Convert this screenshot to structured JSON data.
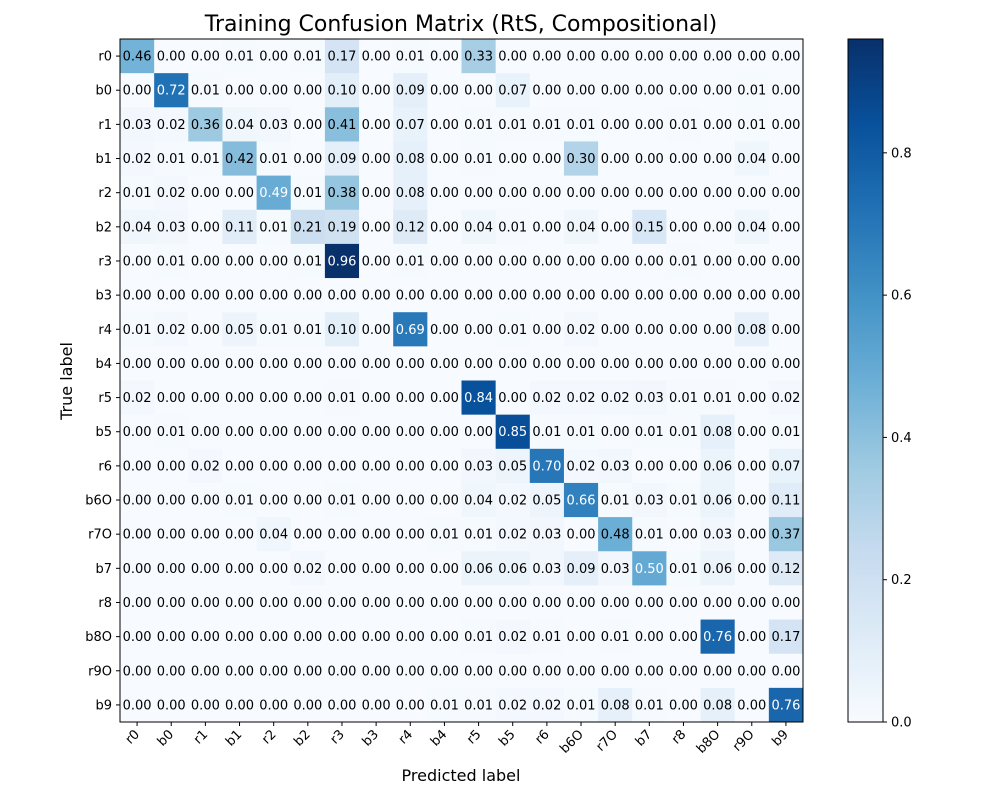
{
  "chart_data": {
    "type": "heatmap",
    "title": "Training Confusion Matrix (RtS, Compositional)",
    "xlabel": "Predicted label",
    "ylabel": "True label",
    "colormap": "Blues",
    "vmin": 0.0,
    "vmax": 0.96,
    "colorbar_ticks": [
      "0.0",
      "0.2",
      "0.4",
      "0.6",
      "0.8"
    ],
    "colorbar_tick_values": [
      0.0,
      0.2,
      0.4,
      0.6,
      0.8
    ],
    "text_color_threshold": 0.48,
    "x_categories": [
      "r0",
      "b0",
      "r1",
      "b1",
      "r2",
      "b2",
      "r3",
      "b3",
      "r4",
      "b4",
      "r5",
      "b5",
      "r6",
      "b6O",
      "r7O",
      "b7",
      "r8",
      "b8O",
      "r9O",
      "b9"
    ],
    "y_categories": [
      "r0",
      "b0",
      "r1",
      "b1",
      "r2",
      "b2",
      "r3",
      "b3",
      "r4",
      "b4",
      "r5",
      "b5",
      "r6",
      "b6O",
      "r7O",
      "b7",
      "r8",
      "b8O",
      "r9O",
      "b9"
    ],
    "values": [
      [
        0.46,
        0.0,
        0.0,
        0.01,
        0.0,
        0.01,
        0.17,
        0.0,
        0.01,
        0.0,
        0.33,
        0.0,
        0.0,
        0.0,
        0.0,
        0.0,
        0.0,
        0.0,
        0.0,
        0.0
      ],
      [
        0.0,
        0.72,
        0.01,
        0.0,
        0.0,
        0.0,
        0.1,
        0.0,
        0.09,
        0.0,
        0.0,
        0.07,
        0.0,
        0.0,
        0.0,
        0.0,
        0.0,
        0.0,
        0.01,
        0.0
      ],
      [
        0.03,
        0.02,
        0.36,
        0.04,
        0.03,
        0.0,
        0.41,
        0.0,
        0.07,
        0.0,
        0.01,
        0.01,
        0.01,
        0.01,
        0.0,
        0.0,
        0.01,
        0.0,
        0.01,
        0.0
      ],
      [
        0.02,
        0.01,
        0.01,
        0.42,
        0.01,
        0.0,
        0.09,
        0.0,
        0.08,
        0.0,
        0.01,
        0.0,
        0.0,
        0.3,
        0.0,
        0.0,
        0.0,
        0.0,
        0.04,
        0.0
      ],
      [
        0.01,
        0.02,
        0.0,
        0.0,
        0.49,
        0.01,
        0.38,
        0.0,
        0.08,
        0.0,
        0.0,
        0.0,
        0.0,
        0.0,
        0.0,
        0.0,
        0.0,
        0.0,
        0.0,
        0.0
      ],
      [
        0.04,
        0.03,
        0.0,
        0.11,
        0.01,
        0.21,
        0.19,
        0.0,
        0.12,
        0.0,
        0.04,
        0.01,
        0.0,
        0.04,
        0.0,
        0.15,
        0.0,
        0.0,
        0.04,
        0.0
      ],
      [
        0.0,
        0.01,
        0.0,
        0.0,
        0.0,
        0.01,
        0.96,
        0.0,
        0.01,
        0.0,
        0.0,
        0.0,
        0.0,
        0.0,
        0.0,
        0.0,
        0.01,
        0.0,
        0.0,
        0.0
      ],
      [
        0.0,
        0.0,
        0.0,
        0.0,
        0.0,
        0.0,
        0.0,
        0.0,
        0.0,
        0.0,
        0.0,
        0.0,
        0.0,
        0.0,
        0.0,
        0.0,
        0.0,
        0.0,
        0.0,
        0.0
      ],
      [
        0.01,
        0.02,
        0.0,
        0.05,
        0.01,
        0.01,
        0.1,
        0.0,
        0.69,
        0.0,
        0.0,
        0.01,
        0.0,
        0.02,
        0.0,
        0.0,
        0.0,
        0.0,
        0.08,
        0.0
      ],
      [
        0.0,
        0.0,
        0.0,
        0.0,
        0.0,
        0.0,
        0.0,
        0.0,
        0.0,
        0.0,
        0.0,
        0.0,
        0.0,
        0.0,
        0.0,
        0.0,
        0.0,
        0.0,
        0.0,
        0.0
      ],
      [
        0.02,
        0.0,
        0.0,
        0.0,
        0.0,
        0.0,
        0.01,
        0.0,
        0.0,
        0.0,
        0.84,
        0.0,
        0.02,
        0.02,
        0.02,
        0.03,
        0.01,
        0.01,
        0.0,
        0.02
      ],
      [
        0.0,
        0.01,
        0.0,
        0.0,
        0.0,
        0.0,
        0.0,
        0.0,
        0.0,
        0.0,
        0.0,
        0.85,
        0.01,
        0.01,
        0.0,
        0.01,
        0.01,
        0.08,
        0.0,
        0.01
      ],
      [
        0.0,
        0.0,
        0.02,
        0.0,
        0.0,
        0.0,
        0.0,
        0.0,
        0.0,
        0.0,
        0.03,
        0.05,
        0.7,
        0.02,
        0.03,
        0.0,
        0.0,
        0.06,
        0.0,
        0.07
      ],
      [
        0.0,
        0.0,
        0.0,
        0.01,
        0.0,
        0.0,
        0.01,
        0.0,
        0.0,
        0.0,
        0.04,
        0.02,
        0.05,
        0.66,
        0.01,
        0.03,
        0.01,
        0.06,
        0.0,
        0.11
      ],
      [
        0.0,
        0.0,
        0.0,
        0.0,
        0.04,
        0.0,
        0.0,
        0.0,
        0.0,
        0.01,
        0.01,
        0.02,
        0.03,
        0.0,
        0.48,
        0.01,
        0.0,
        0.03,
        0.0,
        0.37
      ],
      [
        0.0,
        0.0,
        0.0,
        0.0,
        0.0,
        0.02,
        0.0,
        0.0,
        0.0,
        0.0,
        0.06,
        0.06,
        0.03,
        0.09,
        0.03,
        0.5,
        0.01,
        0.06,
        0.0,
        0.12
      ],
      [
        0.0,
        0.0,
        0.0,
        0.0,
        0.0,
        0.0,
        0.0,
        0.0,
        0.0,
        0.0,
        0.0,
        0.0,
        0.0,
        0.0,
        0.0,
        0.0,
        0.0,
        0.0,
        0.0,
        0.0
      ],
      [
        0.0,
        0.0,
        0.0,
        0.0,
        0.0,
        0.0,
        0.0,
        0.0,
        0.0,
        0.0,
        0.01,
        0.02,
        0.01,
        0.0,
        0.01,
        0.0,
        0.0,
        0.76,
        0.0,
        0.17
      ],
      [
        0.0,
        0.0,
        0.0,
        0.0,
        0.0,
        0.0,
        0.0,
        0.0,
        0.0,
        0.0,
        0.0,
        0.0,
        0.0,
        0.0,
        0.0,
        0.0,
        0.0,
        0.0,
        0.0,
        0.0
      ],
      [
        0.0,
        0.0,
        0.0,
        0.0,
        0.0,
        0.0,
        0.0,
        0.0,
        0.0,
        0.01,
        0.01,
        0.02,
        0.02,
        0.01,
        0.08,
        0.01,
        0.0,
        0.08,
        0.0,
        0.76
      ]
    ]
  }
}
